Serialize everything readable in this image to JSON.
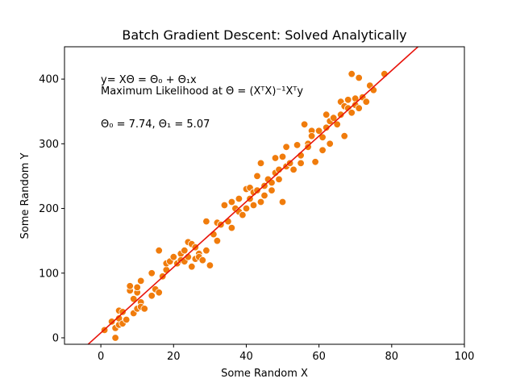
{
  "chart_data": {
    "type": "scatter",
    "title": "Batch Gradient Descent: Solved Analytically",
    "xlabel": "Some Random X",
    "ylabel": "Some Random Y",
    "xlim": [
      -10,
      100
    ],
    "ylim": [
      -10,
      450
    ],
    "xticks": [
      0,
      20,
      40,
      60,
      80,
      100
    ],
    "yticks": [
      0,
      100,
      200,
      300,
      400
    ],
    "grid": false,
    "annotations": {
      "line1": "y= XΘ = Θ₀ + Θ₁x",
      "line2": "Maximum Likelihood at Θ = (XᵀX)⁻¹Xᵀy",
      "line3": "Θ₀ = 7.74, Θ₁ = 5.07"
    },
    "fit_line": {
      "intercept": 7.74,
      "slope": 5.07,
      "color": "#e8140c"
    },
    "point_color": "#f07c0c",
    "points": [
      [
        1,
        12
      ],
      [
        3,
        25
      ],
      [
        4,
        15
      ],
      [
        4,
        0
      ],
      [
        5,
        20
      ],
      [
        5,
        30
      ],
      [
        5,
        42
      ],
      [
        6,
        40
      ],
      [
        6,
        22
      ],
      [
        7,
        28
      ],
      [
        8,
        73
      ],
      [
        8,
        80
      ],
      [
        9,
        60
      ],
      [
        9,
        38
      ],
      [
        10,
        70
      ],
      [
        10,
        78
      ],
      [
        10,
        45
      ],
      [
        11,
        88
      ],
      [
        11,
        55
      ],
      [
        11,
        48
      ],
      [
        12,
        45
      ],
      [
        14,
        65
      ],
      [
        14,
        100
      ],
      [
        15,
        75
      ],
      [
        16,
        70
      ],
      [
        16,
        135
      ],
      [
        17,
        95
      ],
      [
        18,
        105
      ],
      [
        18,
        115
      ],
      [
        19,
        118
      ],
      [
        20,
        125
      ],
      [
        21,
        115
      ],
      [
        22,
        130
      ],
      [
        22,
        120
      ],
      [
        23,
        118
      ],
      [
        23,
        135
      ],
      [
        24,
        148
      ],
      [
        24,
        125
      ],
      [
        25,
        145
      ],
      [
        25,
        110
      ],
      [
        26,
        140
      ],
      [
        26,
        122
      ],
      [
        27,
        130
      ],
      [
        27,
        125
      ],
      [
        28,
        120
      ],
      [
        29,
        180
      ],
      [
        29,
        135
      ],
      [
        30,
        112
      ],
      [
        31,
        160
      ],
      [
        32,
        178
      ],
      [
        32,
        150
      ],
      [
        33,
        175
      ],
      [
        34,
        205
      ],
      [
        35,
        180
      ],
      [
        36,
        170
      ],
      [
        36,
        210
      ],
      [
        37,
        200
      ],
      [
        38,
        195
      ],
      [
        38,
        215
      ],
      [
        39,
        190
      ],
      [
        40,
        230
      ],
      [
        40,
        200
      ],
      [
        41,
        215
      ],
      [
        41,
        232
      ],
      [
        42,
        205
      ],
      [
        42,
        225
      ],
      [
        43,
        250
      ],
      [
        43,
        228
      ],
      [
        44,
        270
      ],
      [
        44,
        210
      ],
      [
        45,
        220
      ],
      [
        45,
        235
      ],
      [
        46,
        245
      ],
      [
        47,
        240
      ],
      [
        47,
        228
      ],
      [
        48,
        278
      ],
      [
        48,
        255
      ],
      [
        49,
        260
      ],
      [
        49,
        245
      ],
      [
        50,
        210
      ],
      [
        50,
        280
      ],
      [
        51,
        265
      ],
      [
        51,
        295
      ],
      [
        52,
        270
      ],
      [
        53,
        260
      ],
      [
        54,
        298
      ],
      [
        55,
        282
      ],
      [
        55,
        270
      ],
      [
        56,
        330
      ],
      [
        57,
        300
      ],
      [
        57,
        295
      ],
      [
        58,
        320
      ],
      [
        58,
        312
      ],
      [
        59,
        272
      ],
      [
        60,
        320
      ],
      [
        61,
        310
      ],
      [
        61,
        290
      ],
      [
        62,
        325
      ],
      [
        62,
        345
      ],
      [
        63,
        335
      ],
      [
        63,
        300
      ],
      [
        64,
        340
      ],
      [
        65,
        330
      ],
      [
        66,
        365
      ],
      [
        66,
        345
      ],
      [
        67,
        358
      ],
      [
        67,
        312
      ],
      [
        68,
        355
      ],
      [
        68,
        368
      ],
      [
        69,
        408
      ],
      [
        69,
        348
      ],
      [
        70,
        370
      ],
      [
        70,
        360
      ],
      [
        71,
        355
      ],
      [
        71,
        402
      ],
      [
        72,
        372
      ],
      [
        73,
        365
      ],
      [
        74,
        390
      ],
      [
        75,
        383
      ],
      [
        78,
        408
      ]
    ]
  }
}
